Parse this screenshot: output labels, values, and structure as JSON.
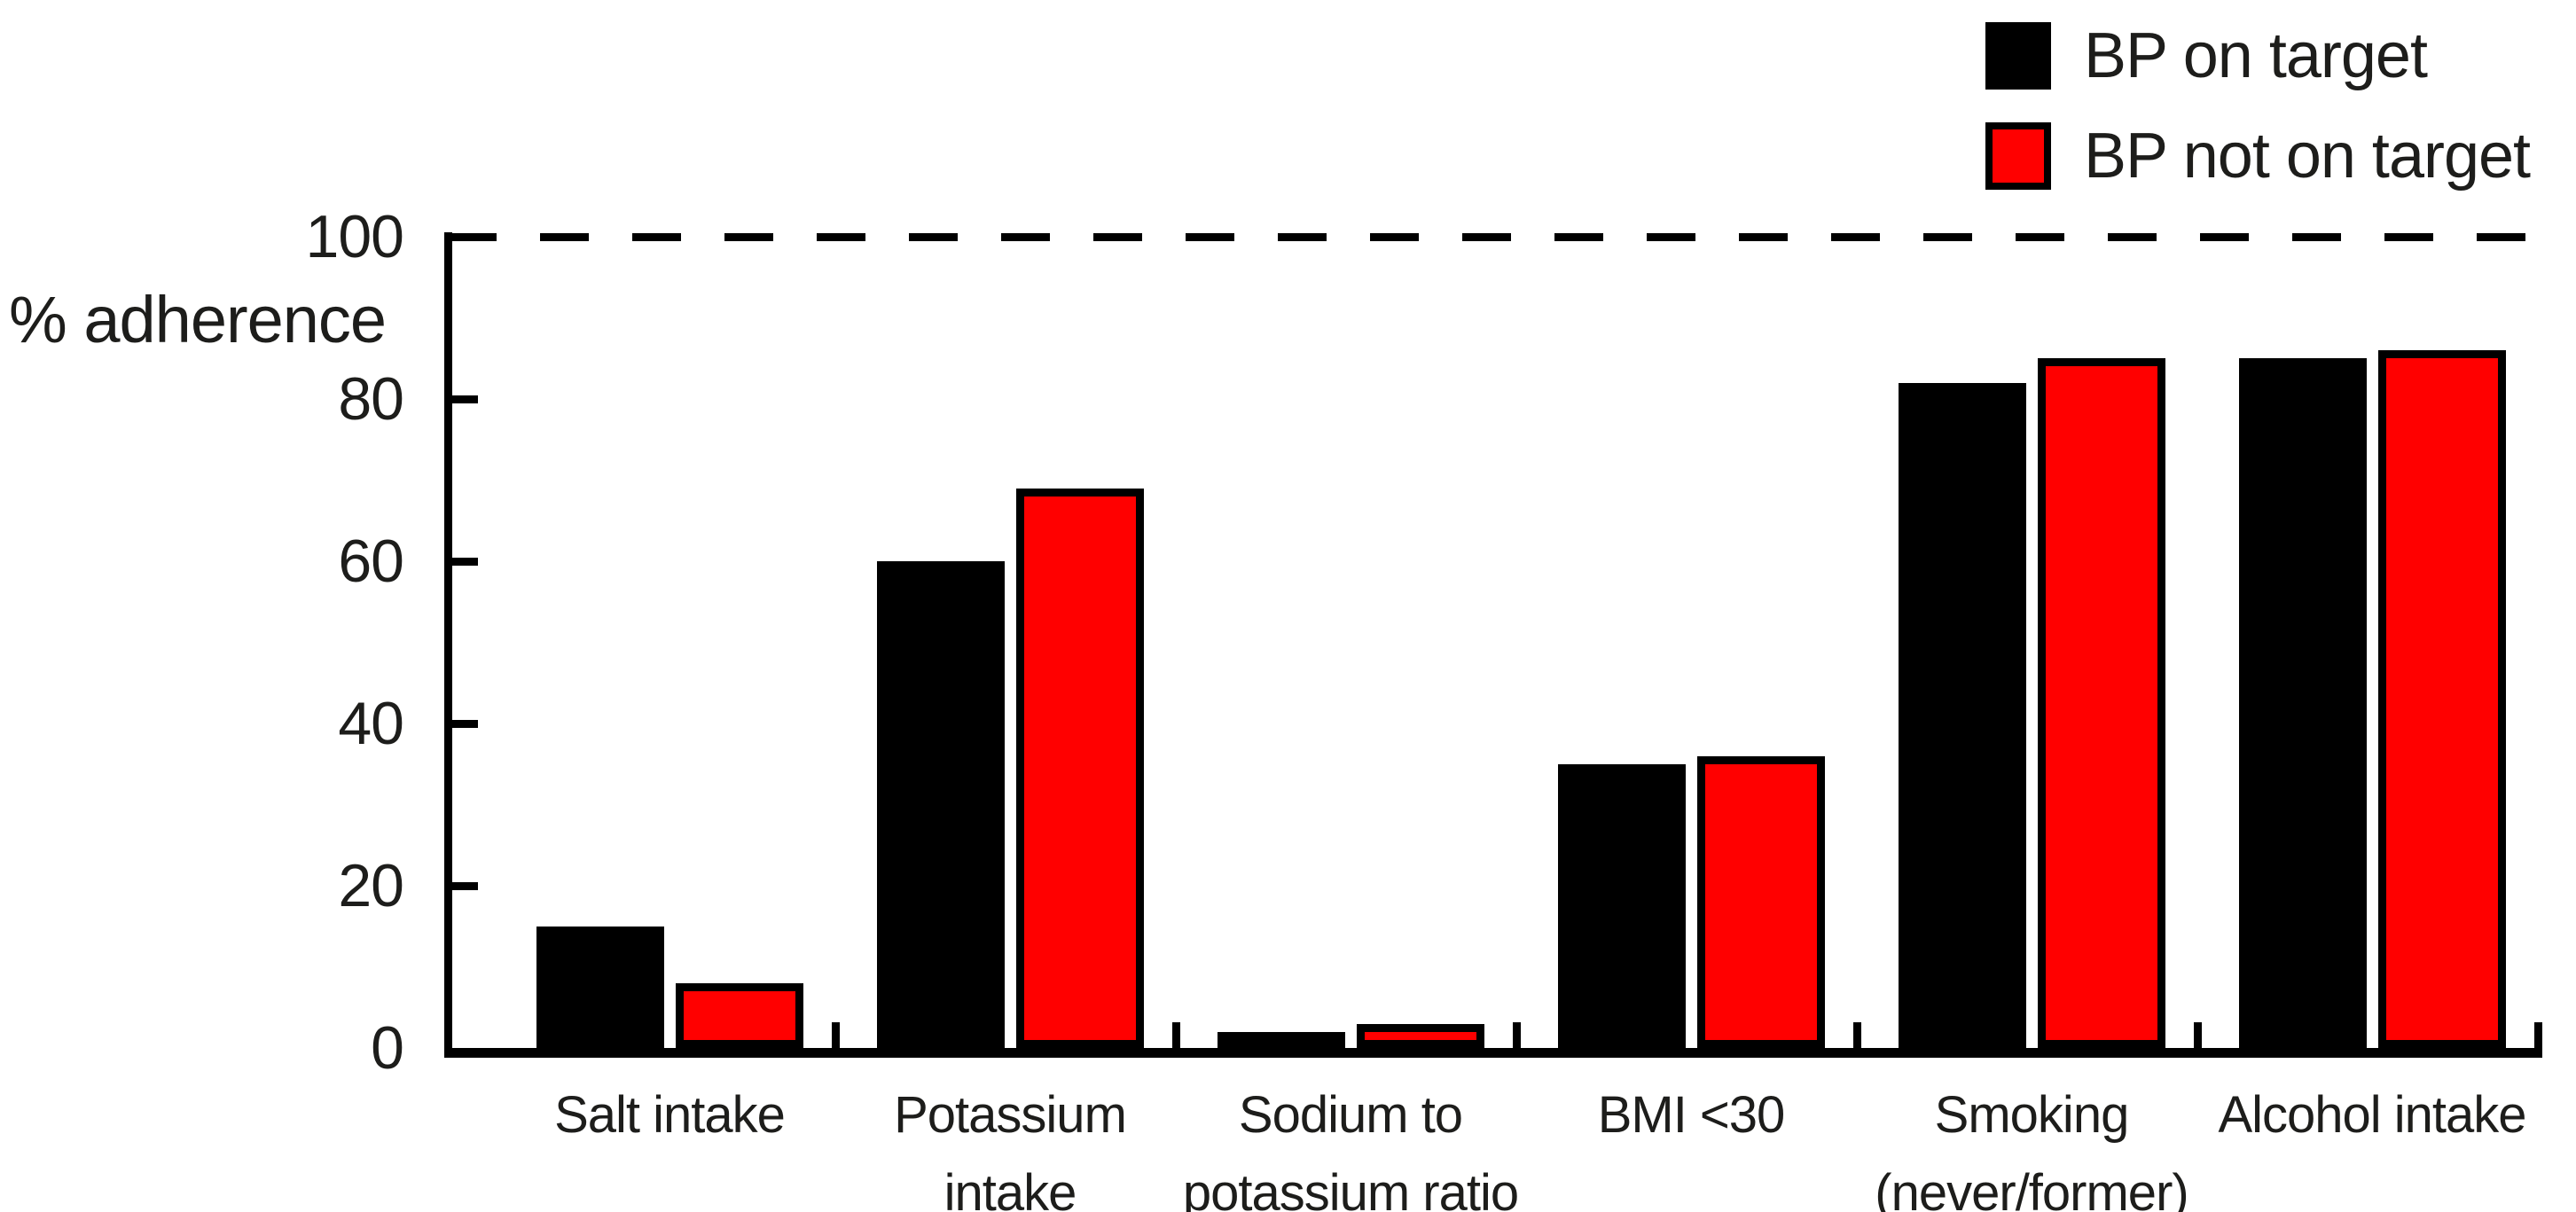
{
  "figure": {
    "background": "#ffffff",
    "text_color": "#1d1d1b"
  },
  "chart_data": {
    "type": "bar",
    "title": "",
    "xlabel": "",
    "ylabel": "% adherence",
    "ylim": [
      0,
      100
    ],
    "yticks": [
      0,
      20,
      40,
      60,
      80,
      100
    ],
    "reference_line_y": 100,
    "reference_line_style": "dashed",
    "grid": false,
    "legend_position": "top-right",
    "categories": [
      "Salt intake",
      "Potassium\nintake",
      "Sodium to\npotassium ratio",
      "BMI <30",
      "Smoking\n(never/former)",
      "Alcohol intake"
    ],
    "series": [
      {
        "name": "BP on target",
        "color": "#000000",
        "values": [
          15,
          60,
          2,
          35,
          82,
          85
        ]
      },
      {
        "name": "BP not on target",
        "color": "#ff0000",
        "border_color": "#000000",
        "values": [
          8,
          69,
          3,
          36,
          85,
          86
        ]
      }
    ]
  }
}
